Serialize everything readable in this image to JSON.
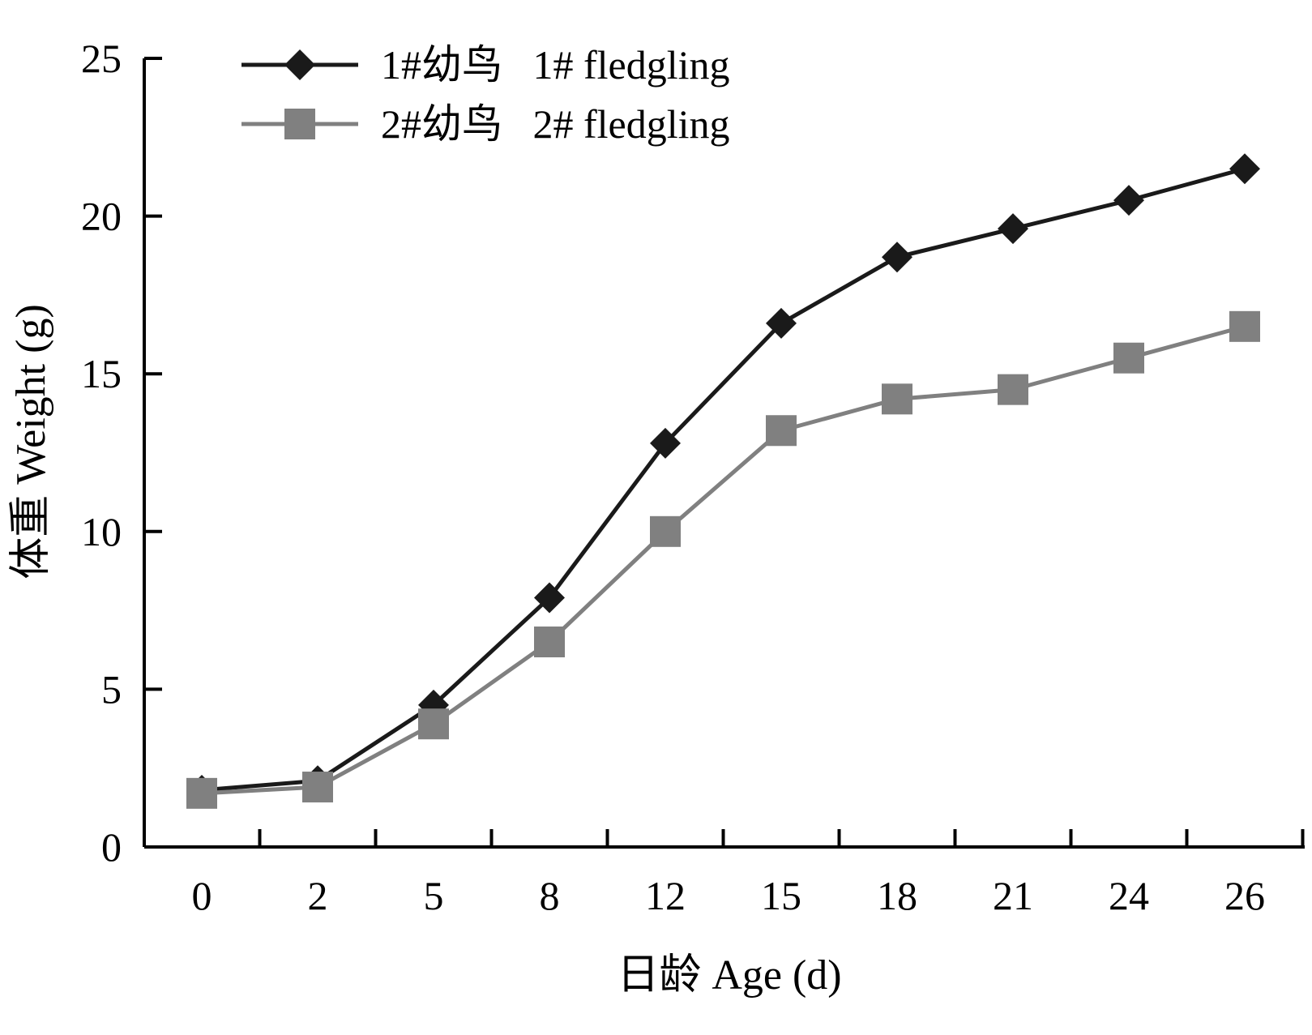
{
  "chart_data": {
    "type": "line",
    "categories": [
      "0",
      "2",
      "5",
      "8",
      "12",
      "15",
      "18",
      "21",
      "24",
      "26"
    ],
    "series": [
      {
        "name": "1#幼鸟 1# fledgling",
        "values": [
          1.8,
          2.1,
          4.5,
          7.9,
          12.8,
          16.6,
          18.7,
          19.6,
          20.5,
          21.5
        ],
        "color": "#1a1a1a",
        "marker": "diamond"
      },
      {
        "name": "2#幼鸟 2# fledgling",
        "values": [
          1.7,
          1.9,
          3.9,
          6.5,
          10.0,
          13.2,
          14.2,
          14.5,
          15.5,
          16.5
        ],
        "color": "#808080",
        "marker": "square"
      }
    ],
    "title": "",
    "xlabel": "日龄 Age (d)",
    "ylabel": "体重 Weight (g)",
    "ylim": [
      0,
      25
    ],
    "yticks": [
      "0",
      "5",
      "10",
      "15",
      "20",
      "25"
    ],
    "grid": false,
    "legend_position": "top-left"
  }
}
